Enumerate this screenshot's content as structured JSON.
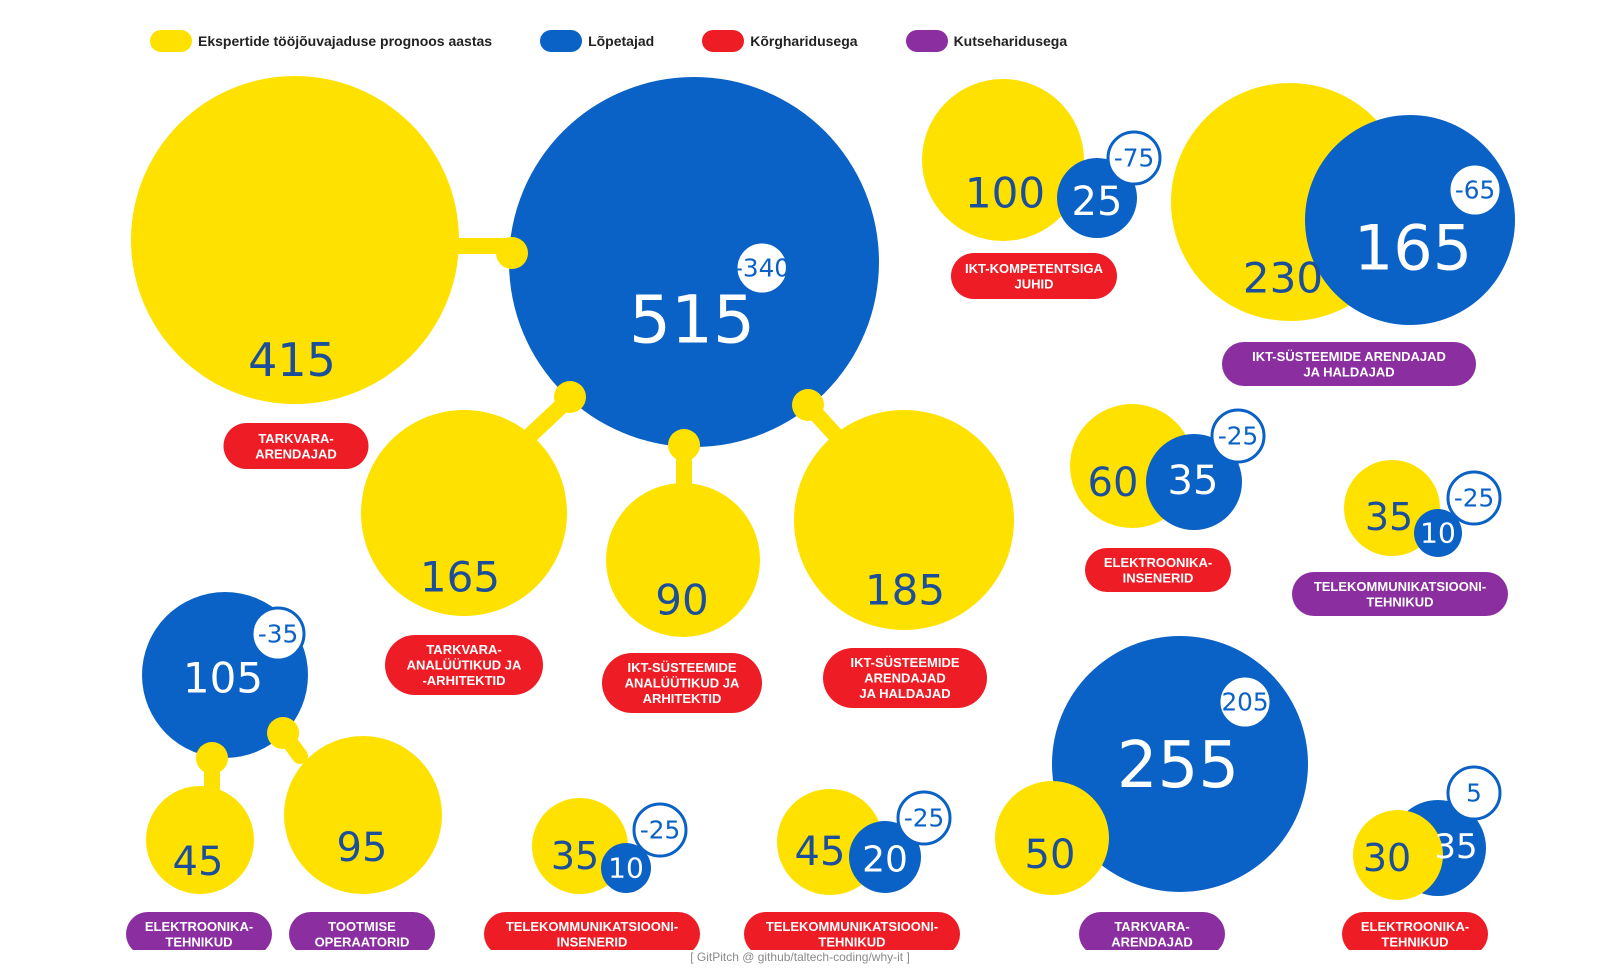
{
  "legend": [
    {
      "label": "Ekspertide tööjõuvajaduse prognoos aastas",
      "color": "#FFE100"
    },
    {
      "label": "Lõpetajad",
      "color": "#0A61C6"
    },
    {
      "label": "Kõrgharidusega",
      "color": "#EE1C25"
    },
    {
      "label": "Kutseharidusega",
      "color": "#8A2EA0"
    }
  ],
  "colors": {
    "demand": "#FFE100",
    "graduates": "#0A61C6",
    "higher": "#EE1C25",
    "vocational": "#8A2EA0",
    "demand_text": "#1B4F9C",
    "graduates_text": "#FFFFFF"
  },
  "chart_data": {
    "type": "bubble",
    "series_names": [
      "Ekspertide tööjõuvajaduse prognoos aastas",
      "Lõpetajad"
    ],
    "groups": [
      {
        "id": "tarkvara-korg",
        "label": "TARKVARA-\nARENDAJAD",
        "education": "Kõrgharidusega",
        "demand": 415,
        "graduates": 515,
        "diff": "-340"
      },
      {
        "id": "tarkvara-analyytikud",
        "label": "TARKVARA-\nANALÜÜTIKUD JA\n-ARHITEKTID",
        "education": "Kõrgharidusega",
        "demand": 165,
        "graduates": 515,
        "diff": "-340"
      },
      {
        "id": "ikt-analyytikud",
        "label": "IKT-SÜSTEEMIDE\nANALÜÜTIKUD JA\nARHITEKTID",
        "education": "Kõrgharidusega",
        "demand": 90,
        "graduates": 515,
        "diff": "-340"
      },
      {
        "id": "ikt-arendajad-korg",
        "label": "IKT-SÜSTEEMIDE\nARENDAJAD\nJA HALDAJAD",
        "education": "Kõrgharidusega",
        "demand": 185,
        "graduates": 515,
        "diff": "-340"
      },
      {
        "id": "ikt-juhid",
        "label": "IKT-KOMPETENTSIGA\nJUHID",
        "education": "Kõrgharidusega",
        "demand": 100,
        "graduates": 25,
        "diff": "-75"
      },
      {
        "id": "ikt-arendajad-kutse",
        "label": "IKT-SÜSTEEMIDE ARENDAJAD\nJA HALDAJAD",
        "education": "Kutseharidusega",
        "demand": 230,
        "graduates": 165,
        "diff": "-65"
      },
      {
        "id": "elektroonika-insenerid",
        "label": "ELEKTROONIKA-\nINSENERID",
        "education": "Kõrgharidusega",
        "demand": 60,
        "graduates": 35,
        "diff": "-25"
      },
      {
        "id": "telekom-tehnikud-kutse",
        "label": "TELEKOMMUNIKATSIOONI-\nTEHNIKUD",
        "education": "Kutseharidusega",
        "demand": 35,
        "graduates": 10,
        "diff": "-25"
      },
      {
        "id": "elektroonika-tehnikud-kutse",
        "label": "ELEKTROONIKA-\nTEHNIKUD",
        "education": "Kutseharidusega",
        "demand": 45,
        "graduates": 105,
        "diff": "-35"
      },
      {
        "id": "tootmise-operaatorid",
        "label": "TOOTMISE\nOPERAATORID",
        "education": "Kutseharidusega",
        "demand": 95,
        "graduates": 105,
        "diff": "-35"
      },
      {
        "id": "telekom-insenerid",
        "label": "TELEKOMMUNIKATSIOONI-\nINSENERID",
        "education": "Kõrgharidusega",
        "demand": 35,
        "graduates": 10,
        "diff": "-25"
      },
      {
        "id": "telekom-tehnikud-korg",
        "label": "TELEKOMMUNIKATSIOONI-\nTEHNIKUD",
        "education": "Kõrgharidusega",
        "demand": 45,
        "graduates": 20,
        "diff": "-25"
      },
      {
        "id": "tarkvara-kutse",
        "label": "TARKVARA-\nARENDAJAD",
        "education": "Kutseharidusega",
        "demand": 50,
        "graduates": 255,
        "diff": "205"
      },
      {
        "id": "elektroonika-tehnikud-korg",
        "label": "ELEKTROONIKA-\nTEHNIKUD",
        "education": "Kõrgharidusega",
        "demand": 30,
        "graduates": 35,
        "diff": "5"
      }
    ]
  },
  "footer": "[ GitPitch @ github/taltech-coding/why-it ]"
}
